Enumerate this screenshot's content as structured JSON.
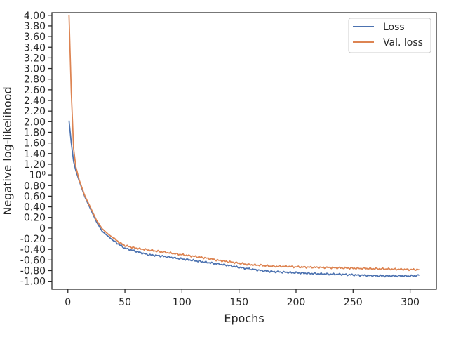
{
  "chart_data": {
    "type": "line",
    "title": "",
    "xlabel": "Epochs",
    "ylabel": "Negative log-likelihood",
    "xlim": [
      -14,
      323
    ],
    "ylim": [
      -1.15,
      4.05
    ],
    "x_ticks": [
      {
        "value": 0,
        "label": "0"
      },
      {
        "value": 50,
        "label": "50"
      },
      {
        "value": 100,
        "label": "100"
      },
      {
        "value": 150,
        "label": "150"
      },
      {
        "value": 200,
        "label": "200"
      },
      {
        "value": 250,
        "label": "250"
      },
      {
        "value": 300,
        "label": "300"
      }
    ],
    "y_ticks": [
      {
        "value": -1.0,
        "label": "-1.00"
      },
      {
        "value": -0.8,
        "label": "-0.80"
      },
      {
        "value": -0.6,
        "label": "-0.60"
      },
      {
        "value": -0.4,
        "label": "-0.40"
      },
      {
        "value": -0.2,
        "label": "-0.20"
      },
      {
        "value": 0.0,
        "label": "0"
      },
      {
        "value": 0.2,
        "label": "0.20"
      },
      {
        "value": 0.4,
        "label": "0.40"
      },
      {
        "value": 0.6,
        "label": "0.60"
      },
      {
        "value": 0.8,
        "label": "0.80"
      },
      {
        "value": 1.0,
        "label": "10⁰"
      },
      {
        "value": 1.2,
        "label": "1.20"
      },
      {
        "value": 1.4,
        "label": "1.40"
      },
      {
        "value": 1.6,
        "label": "1.60"
      },
      {
        "value": 1.8,
        "label": "1.80"
      },
      {
        "value": 2.0,
        "label": "2.00"
      },
      {
        "value": 2.2,
        "label": "2.20"
      },
      {
        "value": 2.4,
        "label": "2.40"
      },
      {
        "value": 2.6,
        "label": "2.60"
      },
      {
        "value": 2.8,
        "label": "2.80"
      },
      {
        "value": 3.0,
        "label": "3.00"
      },
      {
        "value": 3.2,
        "label": "3.20"
      },
      {
        "value": 3.4,
        "label": "3.40"
      },
      {
        "value": 3.6,
        "label": "3.60"
      },
      {
        "value": 3.8,
        "label": "3.80"
      },
      {
        "value": 4.0,
        "label": "4.00"
      }
    ],
    "grid": false,
    "legend_position": "top-right",
    "series": [
      {
        "name": "Loss",
        "color": "#4c72b0",
        "x": [
          1,
          3,
          5,
          7,
          10,
          15,
          20,
          25,
          30,
          35,
          40,
          45,
          50,
          60,
          70,
          80,
          90,
          100,
          110,
          120,
          130,
          140,
          150,
          160,
          170,
          180,
          190,
          200,
          220,
          240,
          260,
          280,
          300,
          308
        ],
        "y": [
          2.02,
          1.6,
          1.25,
          1.08,
          0.88,
          0.58,
          0.35,
          0.12,
          -0.06,
          -0.15,
          -0.24,
          -0.31,
          -0.38,
          -0.44,
          -0.5,
          -0.52,
          -0.55,
          -0.58,
          -0.61,
          -0.64,
          -0.67,
          -0.7,
          -0.74,
          -0.77,
          -0.8,
          -0.82,
          -0.83,
          -0.84,
          -0.86,
          -0.87,
          -0.89,
          -0.9,
          -0.9,
          -0.89
        ]
      },
      {
        "name": "Val. loss",
        "color": "#dd8452",
        "x": [
          1,
          3,
          5,
          7,
          10,
          15,
          20,
          25,
          30,
          35,
          40,
          45,
          50,
          60,
          70,
          80,
          90,
          100,
          110,
          120,
          130,
          140,
          150,
          160,
          170,
          180,
          190,
          200,
          220,
          240,
          260,
          280,
          300,
          308
        ],
        "y": [
          4.0,
          2.55,
          1.5,
          1.15,
          0.9,
          0.6,
          0.38,
          0.15,
          -0.01,
          -0.11,
          -0.19,
          -0.27,
          -0.33,
          -0.38,
          -0.41,
          -0.44,
          -0.47,
          -0.5,
          -0.53,
          -0.56,
          -0.6,
          -0.63,
          -0.66,
          -0.69,
          -0.7,
          -0.72,
          -0.72,
          -0.73,
          -0.74,
          -0.75,
          -0.76,
          -0.77,
          -0.78,
          -0.78
        ]
      }
    ]
  }
}
